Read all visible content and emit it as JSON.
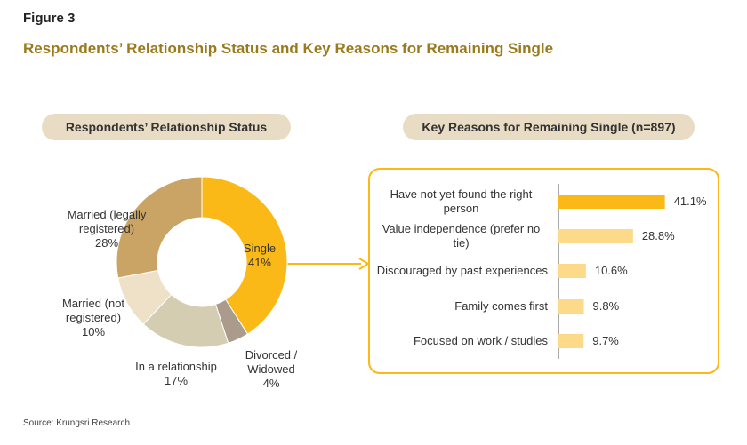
{
  "figure_label": "Figure 3",
  "title": "Respondents’ Relationship Status and Key Reasons for Remaining Single",
  "source": "Source: Krungsri Research",
  "chart_data": [
    {
      "type": "donut",
      "title": "Respondents’ Relationship Status",
      "categories": [
        "Single",
        "Divorced / Widowed",
        "In a relationship",
        "Married (not registered)",
        "Married (legally registered)"
      ],
      "values": [
        41,
        4,
        17,
        10,
        28
      ],
      "value_labels": [
        "41%",
        "4%",
        "17%",
        "10%",
        "28%"
      ],
      "colors": [
        "#fbb918",
        "#ab9b8c",
        "#d5cdb2",
        "#eee1c8",
        "#c9a464"
      ]
    },
    {
      "type": "hbar",
      "title": "Key Reasons for Remaining Single (n=897)",
      "categories": [
        "Have not yet found the right person",
        "Value independence (prefer no tie)",
        "Discouraged by past experiences",
        "Family comes first",
        "Focused on work / studies"
      ],
      "values": [
        41.1,
        28.8,
        10.6,
        9.8,
        9.7
      ],
      "value_labels": [
        "41.1%",
        "28.8%",
        "10.6%",
        "9.8%",
        "9.7%"
      ],
      "colors": [
        "#fbb918",
        "#fdd98a",
        "#fdd98a",
        "#fdd98a",
        "#fdd98a"
      ],
      "xlim": [
        0,
        45
      ]
    }
  ]
}
